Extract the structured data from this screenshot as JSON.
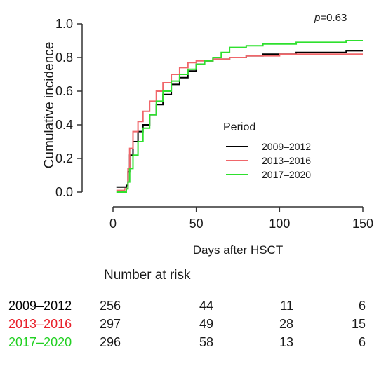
{
  "chart_data": {
    "type": "line",
    "title": "",
    "xlabel": "Days after HSCT",
    "ylabel": "Cumulative incidence",
    "xlim": [
      0,
      150
    ],
    "ylim": [
      0,
      1.0
    ],
    "x_ticks": [
      "0",
      "50",
      "100",
      "150"
    ],
    "y_ticks": [
      "0.0",
      "0.2",
      "0.4",
      "0.6",
      "0.8",
      "1.0"
    ],
    "grid": false,
    "step": true,
    "annotation": {
      "prefix": "p",
      "value": "=0.63"
    },
    "legend": {
      "title": "Period",
      "position": "center-right"
    },
    "series": [
      {
        "name": "2009–2012",
        "color": "#000000",
        "x": [
          2,
          8,
          9,
          10,
          12,
          15,
          18,
          22,
          26,
          30,
          35,
          40,
          45,
          50,
          55,
          60,
          70,
          80,
          90,
          100,
          110,
          120,
          130,
          140,
          150
        ],
        "y": [
          0.03,
          0.04,
          0.12,
          0.22,
          0.3,
          0.36,
          0.4,
          0.46,
          0.52,
          0.58,
          0.64,
          0.68,
          0.72,
          0.76,
          0.78,
          0.79,
          0.8,
          0.81,
          0.82,
          0.82,
          0.83,
          0.83,
          0.83,
          0.84,
          0.84
        ]
      },
      {
        "name": "2013–2016",
        "color": "#f0666a",
        "x": [
          2,
          7,
          9,
          10,
          12,
          15,
          18,
          22,
          26,
          30,
          35,
          40,
          45,
          50,
          55,
          60,
          70,
          80,
          90,
          100,
          110,
          120,
          130,
          140,
          150
        ],
        "y": [
          0.01,
          0.02,
          0.14,
          0.26,
          0.36,
          0.42,
          0.48,
          0.54,
          0.6,
          0.65,
          0.7,
          0.74,
          0.77,
          0.78,
          0.78,
          0.79,
          0.8,
          0.81,
          0.81,
          0.82,
          0.82,
          0.82,
          0.82,
          0.82,
          0.82
        ]
      },
      {
        "name": "2017–2020",
        "color": "#2ee02e",
        "x": [
          2,
          8,
          9,
          10,
          12,
          15,
          18,
          22,
          26,
          30,
          35,
          40,
          45,
          50,
          55,
          60,
          65,
          70,
          80,
          90,
          100,
          110,
          120,
          130,
          140,
          150
        ],
        "y": [
          0.0,
          0.02,
          0.06,
          0.14,
          0.22,
          0.3,
          0.38,
          0.46,
          0.54,
          0.6,
          0.66,
          0.7,
          0.73,
          0.76,
          0.78,
          0.8,
          0.83,
          0.86,
          0.87,
          0.88,
          0.88,
          0.89,
          0.89,
          0.89,
          0.9,
          0.9
        ]
      }
    ]
  },
  "risk_table": {
    "heading": "Number at risk",
    "rows": [
      {
        "label": "2009–2012",
        "color": "#000000",
        "values": [
          "256",
          "44",
          "11",
          "6"
        ]
      },
      {
        "label": "2013–2016",
        "color": "#e8202a",
        "values": [
          "297",
          "49",
          "28",
          "15"
        ]
      },
      {
        "label": "2017–2020",
        "color": "#22d022",
        "values": [
          "296",
          "58",
          "13",
          "6"
        ]
      }
    ]
  }
}
